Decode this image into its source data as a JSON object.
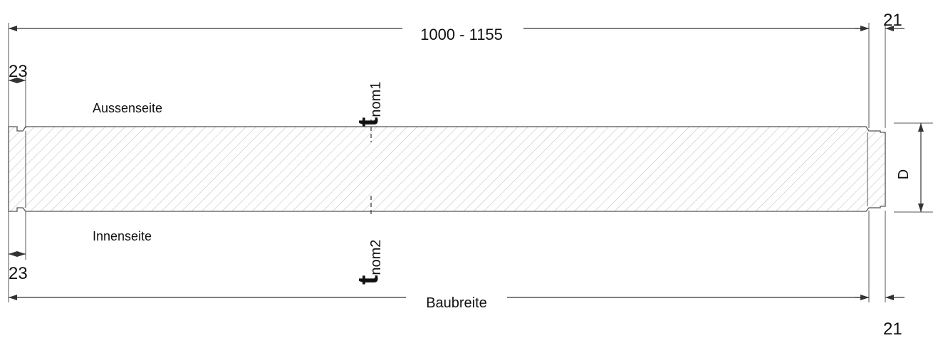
{
  "top_dimension": {
    "label": "1000 - 1155"
  },
  "top_right_dimension": {
    "label": "21"
  },
  "top_left_dimension": {
    "label": "23"
  },
  "outer_side": "Aussenseite",
  "t_nom1": {
    "symbol": "t",
    "subscript": "nom1"
  },
  "thickness": {
    "label": "D"
  },
  "inner_side": "Innenseite",
  "bottom_left_dimension": {
    "label": "23"
  },
  "t_nom2": {
    "symbol": "t",
    "subscript": "nom2"
  },
  "bottom_dimension": {
    "label": "Baubreite"
  },
  "bottom_right_dimension": {
    "label": "21"
  }
}
